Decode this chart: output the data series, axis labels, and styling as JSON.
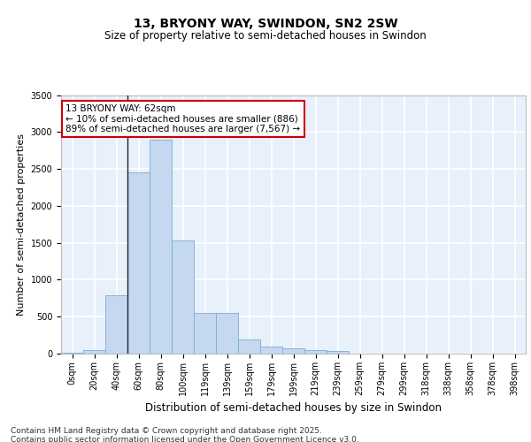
{
  "title": "13, BRYONY WAY, SWINDON, SN2 2SW",
  "subtitle": "Size of property relative to semi-detached houses in Swindon",
  "xlabel": "Distribution of semi-detached houses by size in Swindon",
  "ylabel": "Number of semi-detached properties",
  "bar_color": "#c5d8f0",
  "bar_edge_color": "#7aadd4",
  "background_color": "#e8f0fb",
  "grid_color": "#ffffff",
  "categories": [
    "0sqm",
    "20sqm",
    "40sqm",
    "60sqm",
    "80sqm",
    "100sqm",
    "119sqm",
    "139sqm",
    "159sqm",
    "179sqm",
    "199sqm",
    "219sqm",
    "239sqm",
    "259sqm",
    "279sqm",
    "299sqm",
    "318sqm",
    "338sqm",
    "358sqm",
    "378sqm",
    "398sqm"
  ],
  "values": [
    15,
    50,
    790,
    2450,
    2890,
    1530,
    545,
    545,
    195,
    90,
    70,
    45,
    30,
    0,
    0,
    0,
    0,
    0,
    0,
    0,
    0
  ],
  "ylim": [
    0,
    3500
  ],
  "yticks": [
    0,
    500,
    1000,
    1500,
    2000,
    2500,
    3000,
    3500
  ],
  "annotation_line1": "13 BRYONY WAY: 62sqm",
  "annotation_line2": "← 10% of semi-detached houses are smaller (886)",
  "annotation_line3": "89% of semi-detached houses are larger (7,567) →",
  "vline_bar_index": 3,
  "footnote": "Contains HM Land Registry data © Crown copyright and database right 2025.\nContains public sector information licensed under the Open Government Licence v3.0.",
  "title_fontsize": 10,
  "subtitle_fontsize": 8.5,
  "axis_label_fontsize": 8,
  "tick_fontsize": 7,
  "annotation_fontsize": 7.5,
  "footnote_fontsize": 6.5
}
